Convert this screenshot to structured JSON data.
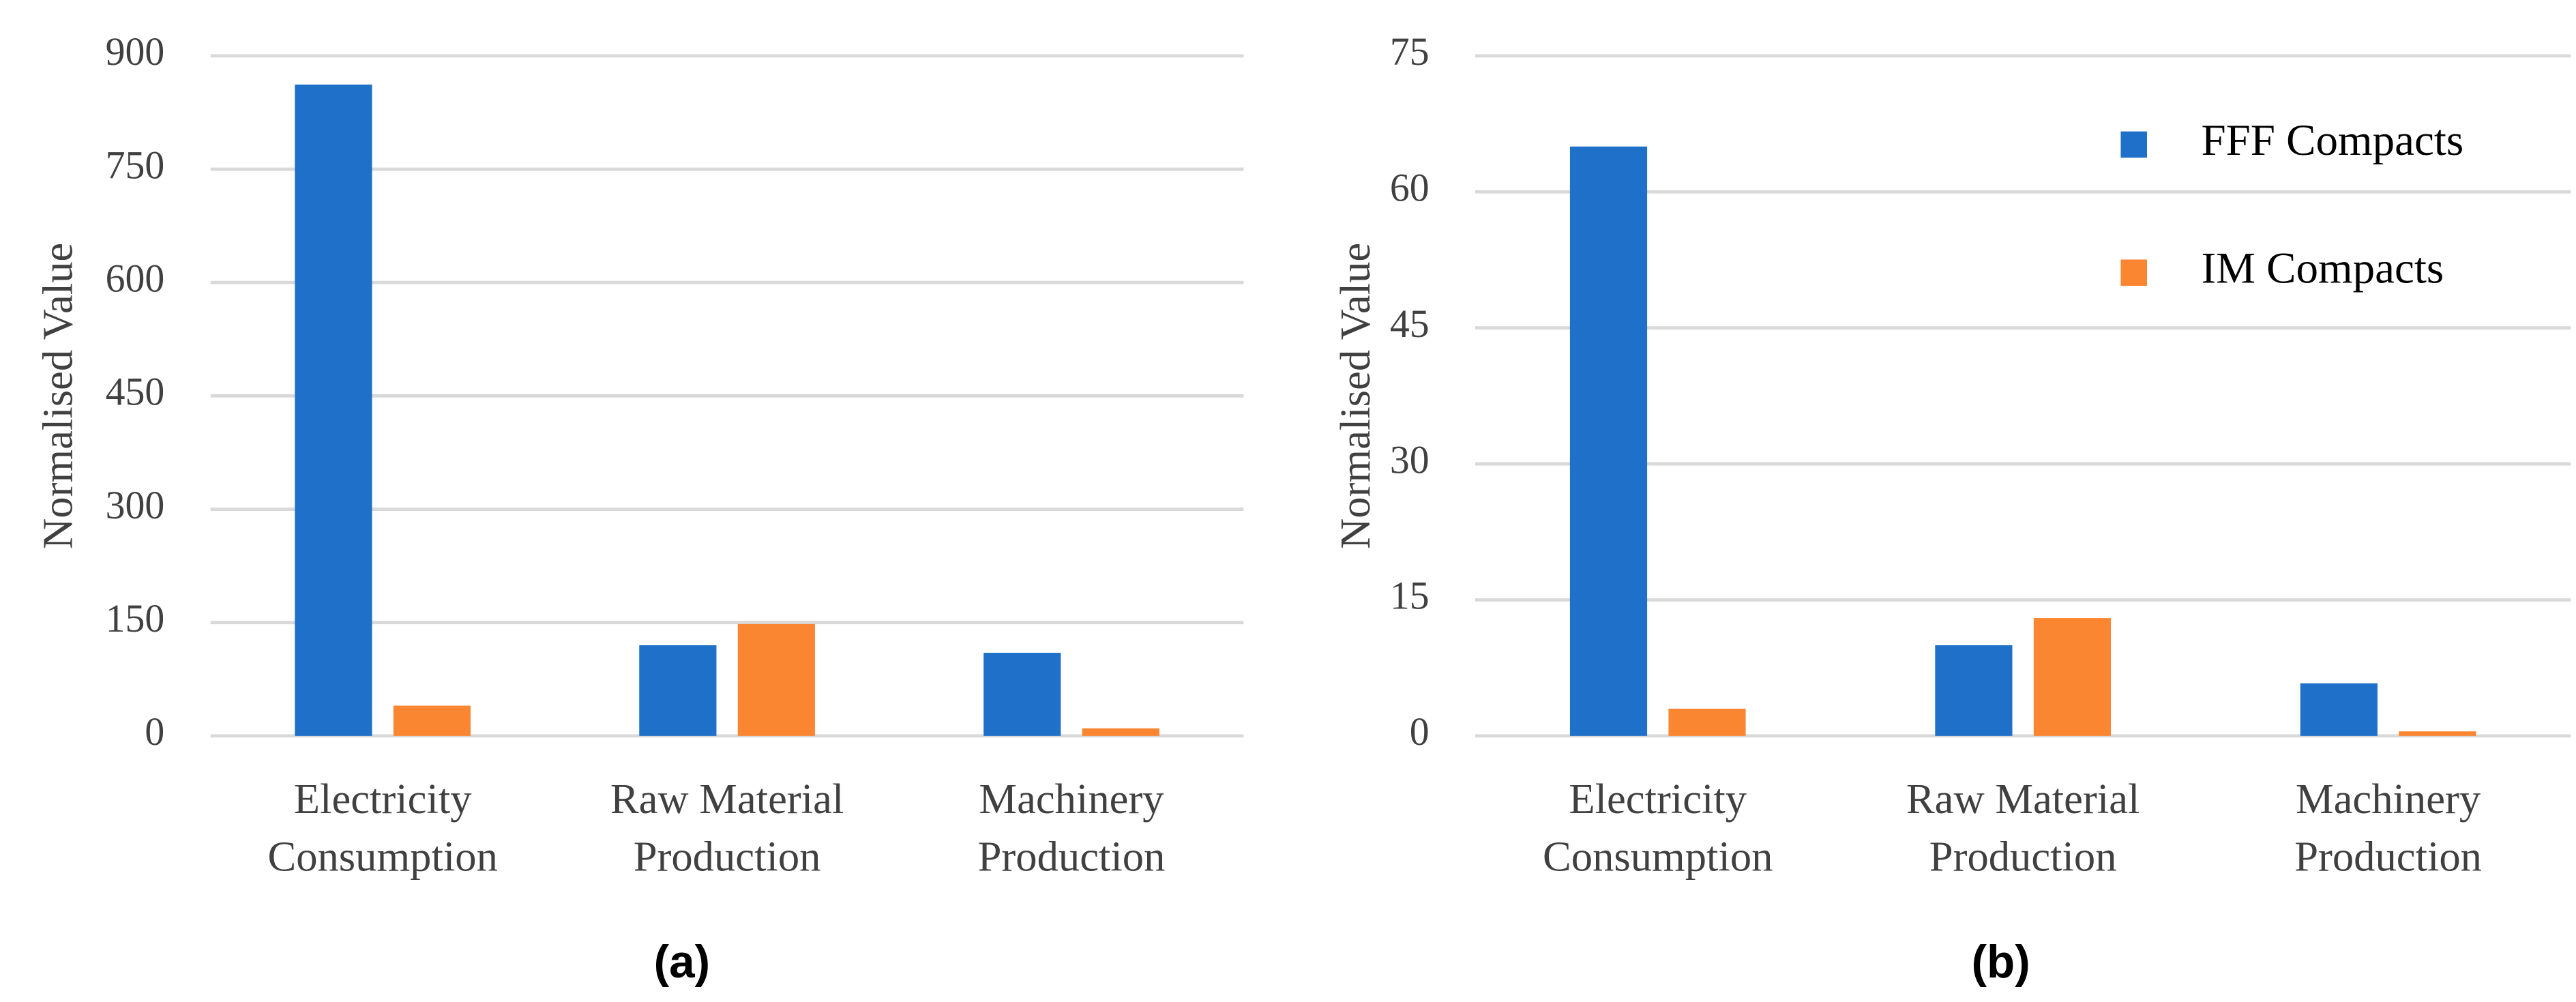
{
  "chart_data": [
    {
      "type": "bar",
      "caption": "(a)",
      "y_label": "Normalised Value",
      "categories": [
        "Electricity\nConsumption",
        "Raw Material\nProduction",
        "Machinery\nProduction"
      ],
      "series": [
        {
          "color": "#1f70c8",
          "values": [
            862,
            120,
            110
          ]
        },
        {
          "color": "#fb8632",
          "values": [
            40,
            148,
            10
          ]
        }
      ],
      "ylim": [
        0,
        900
      ],
      "yticks": [
        0,
        150,
        300,
        450,
        600,
        750,
        900
      ],
      "grid": true
    },
    {
      "type": "bar",
      "caption": "(b)",
      "y_label": "Normalised Value",
      "categories": [
        "Electricity\nConsumption",
        "Raw Material\nProduction",
        "Machinery\nProduction"
      ],
      "series": [
        {
          "name": "FFF Compacts",
          "color": "#1f70c8",
          "values": [
            65,
            10,
            5.8
          ]
        },
        {
          "name": "IM Compacts",
          "color": "#fb8632",
          "values": [
            3,
            13,
            0.5
          ]
        }
      ],
      "ylim": [
        0,
        75
      ],
      "yticks": [
        0,
        15,
        30,
        45,
        60,
        75
      ],
      "grid": true,
      "legend": "top-right"
    }
  ]
}
